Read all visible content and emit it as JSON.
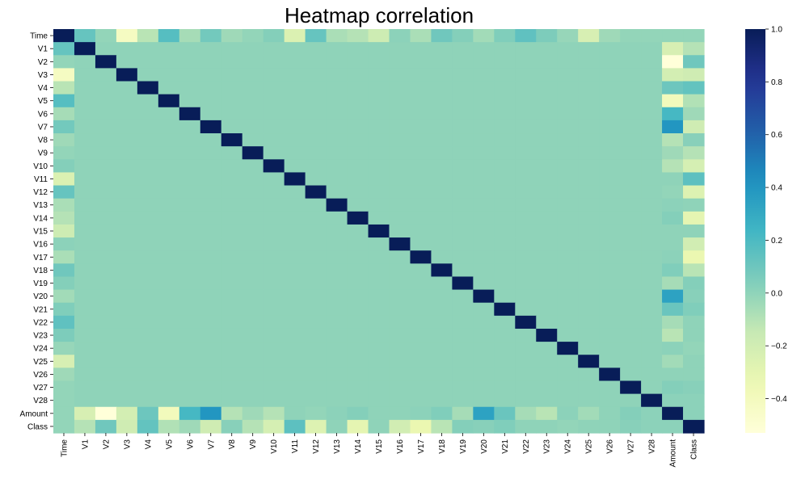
{
  "chart_data": {
    "type": "heatmap",
    "title": "Heatmap correlation",
    "xlabel": "",
    "ylabel": "",
    "labels": [
      "Time",
      "V1",
      "V2",
      "V3",
      "V4",
      "V5",
      "V6",
      "V7",
      "V8",
      "V9",
      "V10",
      "V11",
      "V12",
      "V13",
      "V14",
      "V15",
      "V16",
      "V17",
      "V18",
      "V19",
      "V20",
      "V21",
      "V22",
      "V23",
      "V24",
      "V25",
      "V26",
      "V27",
      "V28",
      "Amount",
      "Class"
    ],
    "colormap": "YlGnBu",
    "vmin": -0.53,
    "vmax": 1.0,
    "colorbar_ticks": [
      "1.0",
      "0.8",
      "0.6",
      "0.4",
      "0.2",
      "0.0",
      "−0.2",
      "−0.4"
    ],
    "colorbar_tick_values": [
      1.0,
      0.8,
      0.6,
      0.4,
      0.2,
      0.0,
      -0.2,
      -0.4
    ],
    "time_correlations": [
      1.0,
      0.12,
      -0.01,
      -0.42,
      -0.11,
      0.17,
      -0.06,
      0.08,
      -0.04,
      -0.01,
      0.03,
      -0.25,
      0.12,
      -0.07,
      -0.1,
      -0.18,
      0.01,
      -0.07,
      0.09,
      0.03,
      -0.05,
      0.04,
      0.14,
      0.05,
      -0.02,
      -0.23,
      -0.04,
      -0.01,
      -0.01,
      -0.01,
      -0.01
    ],
    "amount_correlations": [
      -0.01,
      -0.23,
      -0.53,
      -0.21,
      0.1,
      -0.39,
      0.22,
      0.4,
      -0.1,
      -0.04,
      -0.1,
      0.0,
      -0.01,
      0.01,
      0.03,
      -0.0,
      -0.0,
      0.01,
      0.04,
      -0.06,
      0.34,
      0.11,
      -0.06,
      -0.11,
      0.01,
      -0.05,
      -0.0,
      0.03,
      0.01,
      1.0,
      0.01
    ],
    "class_correlations": [
      -0.01,
      -0.1,
      0.09,
      -0.19,
      0.13,
      -0.09,
      -0.04,
      -0.19,
      0.02,
      -0.1,
      -0.22,
      0.15,
      -0.26,
      -0.0,
      -0.3,
      -0.0,
      -0.2,
      -0.33,
      -0.11,
      0.03,
      0.02,
      0.04,
      0.0,
      -0.0,
      -0.01,
      0.0,
      0.0,
      0.02,
      0.01,
      0.01,
      1.0
    ]
  }
}
